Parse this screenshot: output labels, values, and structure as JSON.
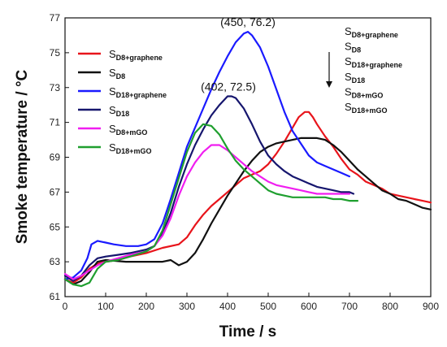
{
  "chart_data": {
    "type": "line",
    "xlabel": "Time / s",
    "ylabel": "Smoke temperature / °C",
    "xlim": [
      0,
      900
    ],
    "ylim": [
      61,
      77
    ],
    "xticks": [
      0,
      100,
      200,
      300,
      400,
      500,
      600,
      700,
      800,
      900
    ],
    "yticks": [
      61,
      63,
      65,
      67,
      69,
      71,
      73,
      75,
      77
    ],
    "grid": false,
    "legend_position": "top-left",
    "series": [
      {
        "name": "SD8+graphene",
        "main": "S",
        "sub": "D8+graphene",
        "color": "#e8141b",
        "x": [
          0,
          20,
          40,
          60,
          80,
          100,
          130,
          160,
          200,
          240,
          280,
          300,
          320,
          340,
          360,
          380,
          400,
          420,
          440,
          460,
          480,
          500,
          520,
          540,
          560,
          575,
          590,
          600,
          610,
          620,
          640,
          660,
          680,
          700,
          720,
          740,
          760,
          780,
          800,
          820,
          840,
          860,
          880,
          900
        ],
        "y": [
          62.0,
          61.8,
          62.1,
          62.6,
          62.9,
          63.0,
          63.1,
          63.3,
          63.5,
          63.8,
          64.0,
          64.4,
          65.1,
          65.7,
          66.2,
          66.6,
          67.0,
          67.4,
          67.8,
          68.0,
          68.2,
          68.6,
          69.2,
          69.9,
          70.7,
          71.3,
          71.6,
          71.6,
          71.3,
          70.9,
          70.2,
          69.6,
          68.9,
          68.3,
          68.0,
          67.6,
          67.4,
          67.2,
          66.9,
          66.8,
          66.7,
          66.6,
          66.5,
          66.4
        ]
      },
      {
        "name": "SD8",
        "main": "S",
        "sub": "D8",
        "color": "#111111",
        "x": [
          0,
          20,
          40,
          60,
          80,
          100,
          150,
          200,
          240,
          260,
          280,
          300,
          320,
          340,
          360,
          380,
          400,
          420,
          440,
          460,
          480,
          500,
          520,
          540,
          560,
          580,
          600,
          620,
          640,
          660,
          680,
          700,
          720,
          740,
          760,
          780,
          800,
          820,
          840,
          860,
          880,
          900
        ],
        "y": [
          62.0,
          61.7,
          61.9,
          62.4,
          63.0,
          63.1,
          63.0,
          63.0,
          63.0,
          63.1,
          62.8,
          63.0,
          63.5,
          64.3,
          65.2,
          66.0,
          66.8,
          67.5,
          68.2,
          68.8,
          69.3,
          69.6,
          69.8,
          69.9,
          70.0,
          70.1,
          70.1,
          70.1,
          70.0,
          69.7,
          69.3,
          68.8,
          68.3,
          67.9,
          67.5,
          67.1,
          66.9,
          66.6,
          66.5,
          66.3,
          66.1,
          66.0
        ]
      },
      {
        "name": "SD18+graphene",
        "main": "S",
        "sub": "D18+graphene",
        "color": "#1a1aff",
        "x": [
          0,
          20,
          40,
          55,
          65,
          80,
          100,
          120,
          150,
          180,
          200,
          220,
          240,
          260,
          280,
          300,
          320,
          340,
          360,
          380,
          400,
          420,
          440,
          450,
          460,
          480,
          500,
          520,
          540,
          560,
          580,
          600,
          620,
          640,
          660,
          680,
          700
        ],
        "y": [
          62.0,
          62.1,
          62.5,
          63.2,
          64.0,
          64.2,
          64.1,
          64.0,
          63.9,
          63.9,
          64.0,
          64.3,
          65.2,
          66.6,
          68.1,
          69.6,
          70.7,
          71.8,
          72.9,
          73.9,
          74.8,
          75.6,
          76.1,
          76.2,
          76.0,
          75.3,
          74.2,
          72.9,
          71.6,
          70.5,
          69.8,
          69.1,
          68.7,
          68.5,
          68.3,
          68.1,
          67.9
        ]
      },
      {
        "name": "SD18",
        "main": "S",
        "sub": "D18",
        "color": "#16166e",
        "x": [
          0,
          20,
          40,
          60,
          80,
          100,
          130,
          160,
          200,
          220,
          240,
          260,
          280,
          300,
          320,
          340,
          360,
          380,
          400,
          410,
          420,
          440,
          460,
          480,
          500,
          520,
          540,
          560,
          580,
          600,
          620,
          640,
          660,
          680,
          700,
          710
        ],
        "y": [
          62.2,
          61.9,
          62.2,
          62.8,
          63.2,
          63.3,
          63.4,
          63.5,
          63.7,
          63.9,
          64.6,
          65.8,
          67.3,
          68.6,
          69.7,
          70.6,
          71.4,
          72.0,
          72.5,
          72.5,
          72.4,
          71.8,
          70.9,
          69.9,
          69.1,
          68.6,
          68.2,
          67.9,
          67.7,
          67.5,
          67.3,
          67.2,
          67.1,
          67.0,
          67.0,
          66.9
        ]
      },
      {
        "name": "SD8+mGO",
        "main": "S",
        "sub": "D8+mGO",
        "color": "#f01ef0",
        "x": [
          0,
          20,
          40,
          60,
          80,
          100,
          130,
          160,
          200,
          220,
          240,
          260,
          280,
          300,
          320,
          340,
          360,
          380,
          400,
          420,
          440,
          460,
          480,
          500,
          520,
          540,
          560,
          580,
          600,
          620,
          640,
          660,
          680,
          700
        ],
        "y": [
          62.3,
          62.0,
          62.2,
          62.5,
          62.8,
          63.0,
          63.2,
          63.4,
          63.6,
          63.9,
          64.5,
          65.5,
          66.8,
          67.9,
          68.7,
          69.3,
          69.7,
          69.7,
          69.4,
          69.0,
          68.6,
          68.2,
          67.9,
          67.6,
          67.4,
          67.3,
          67.2,
          67.1,
          67.0,
          66.9,
          66.9,
          66.9,
          66.9,
          66.9
        ]
      },
      {
        "name": "SD18+mGO",
        "main": "S",
        "sub": "D18+mGO",
        "color": "#1f9f2f",
        "x": [
          0,
          20,
          40,
          60,
          80,
          100,
          130,
          160,
          200,
          220,
          240,
          260,
          280,
          300,
          320,
          340,
          360,
          380,
          400,
          420,
          440,
          460,
          480,
          500,
          520,
          540,
          560,
          580,
          600,
          620,
          640,
          660,
          680,
          700,
          720
        ],
        "y": [
          62.0,
          61.7,
          61.6,
          61.8,
          62.6,
          63.0,
          63.1,
          63.3,
          63.6,
          63.9,
          64.8,
          66.3,
          67.8,
          69.3,
          70.4,
          70.9,
          70.8,
          70.3,
          69.5,
          68.8,
          68.3,
          67.9,
          67.5,
          67.1,
          66.9,
          66.8,
          66.7,
          66.7,
          66.7,
          66.7,
          66.7,
          66.6,
          66.6,
          66.5,
          66.5
        ]
      }
    ],
    "annotations": [
      {
        "text": "(450, 76.2)",
        "x": 450,
        "y": 76.2
      },
      {
        "text": "(402, 72.5)",
        "x": 402,
        "y": 72.5
      }
    ],
    "right_legend": [
      {
        "main": "S",
        "sub": "D8+graphene"
      },
      {
        "main": "S",
        "sub": "D8"
      },
      {
        "main": "S",
        "sub": "D18+graphene"
      },
      {
        "main": "S",
        "sub": "D18"
      },
      {
        "main": "S",
        "sub": "D8+mGO"
      },
      {
        "main": "S",
        "sub": "D18+mGO"
      }
    ]
  }
}
